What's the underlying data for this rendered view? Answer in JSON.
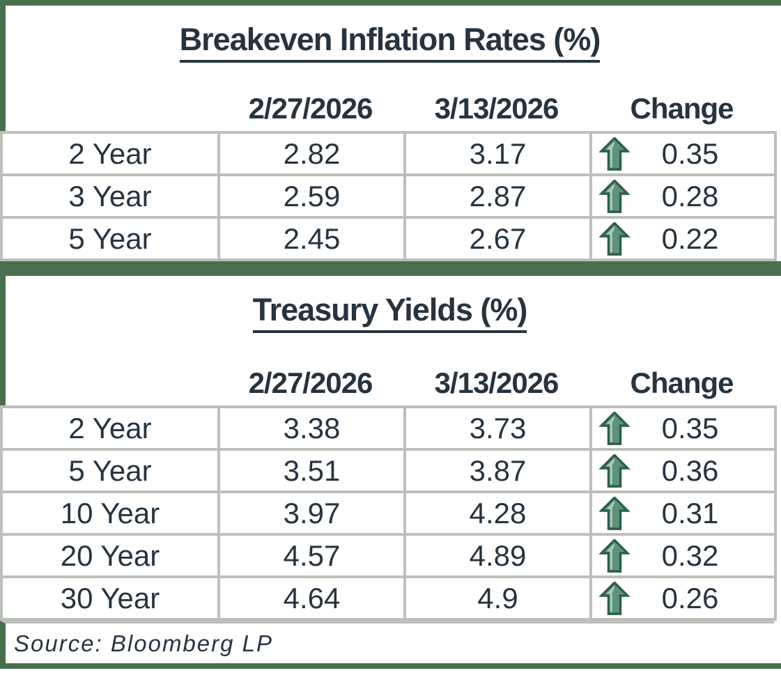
{
  "tables": [
    {
      "title": "Breakeven Inflation Rates (%)",
      "columns": [
        "2/27/2026",
        "3/13/2026",
        "Change"
      ],
      "rows": [
        {
          "label": "2 Year",
          "prev": "2.82",
          "curr": "3.17",
          "change": "0.35",
          "direction": "up"
        },
        {
          "label": "3 Year",
          "prev": "2.59",
          "curr": "2.87",
          "change": "0.28",
          "direction": "up"
        },
        {
          "label": "5 Year",
          "prev": "2.45",
          "curr": "2.67",
          "change": "0.22",
          "direction": "up"
        }
      ]
    },
    {
      "title": "Treasury Yields (%)",
      "columns": [
        "2/27/2026",
        "3/13/2026",
        "Change"
      ],
      "rows": [
        {
          "label": "2 Year",
          "prev": "3.38",
          "curr": "3.73",
          "change": "0.35",
          "direction": "up"
        },
        {
          "label": "5 Year",
          "prev": "3.51",
          "curr": "3.87",
          "change": "0.36",
          "direction": "up"
        },
        {
          "label": "10 Year",
          "prev": "3.97",
          "curr": "4.28",
          "change": "0.31",
          "direction": "up"
        },
        {
          "label": "20 Year",
          "prev": "4.57",
          "curr": "4.89",
          "change": "0.32",
          "direction": "up"
        },
        {
          "label": "30 Year",
          "prev": "4.64",
          "curr": "4.9",
          "change": "0.26",
          "direction": "up"
        }
      ]
    }
  ],
  "footer": {
    "source": "Source: Bloomberg LP"
  },
  "colors": {
    "frame_green": "#48704E",
    "grid_gray": "#BDC0BA",
    "text_dark": "#263440",
    "arrow_fill": "#5E9279",
    "arrow_outline": "#2E5E4E",
    "arrow_highlight": "#A9CBB8"
  },
  "icons": {
    "change_up": "up-arrow-icon"
  }
}
